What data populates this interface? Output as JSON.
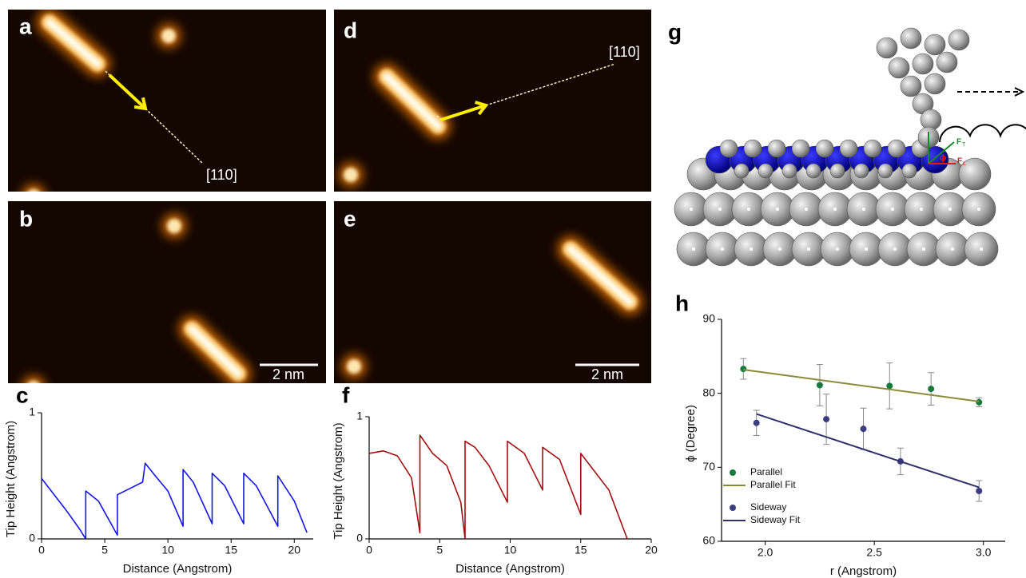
{
  "figure": {
    "panel_labels": [
      "a",
      "b",
      "c",
      "d",
      "e",
      "f",
      "g",
      "h"
    ],
    "direction_labels": [
      "[110]",
      "[110]"
    ],
    "scale_bars": [
      "2 nm",
      "2 nm"
    ],
    "force_labels": [
      "F",
      "T",
      "F",
      "L",
      "ϕ"
    ]
  },
  "chart_data": [
    {
      "type": "line",
      "xlabel": "Distance (Angstrom)",
      "ylabel": "Tip Height (Angstrom)",
      "color": "#1414e6",
      "x": [
        0,
        1,
        2,
        3,
        3.5,
        3.5,
        4.5,
        5.5,
        6,
        6,
        7,
        8,
        8.2,
        9,
        10,
        11.2,
        11.2,
        12,
        13.5,
        13.5,
        14.5,
        16,
        16,
        17,
        18.7,
        18.7,
        20,
        21
      ],
      "values": [
        0.48,
        0.35,
        0.22,
        0.08,
        0,
        0.38,
        0.3,
        0.12,
        0.03,
        0.35,
        0.4,
        0.45,
        0.6,
        0.5,
        0.38,
        0.1,
        0.55,
        0.45,
        0.12,
        0.52,
        0.42,
        0.12,
        0.52,
        0.42,
        0.1,
        0.5,
        0.3,
        0.05
      ],
      "xlim": [
        0,
        21.5
      ],
      "xticks": [
        0,
        5,
        10,
        15,
        20
      ],
      "ylim": [
        0,
        1
      ],
      "yticks": [
        0,
        1
      ]
    },
    {
      "type": "line",
      "xlabel": "Distance (Angstrom)",
      "ylabel": "Tip Height (Angstrom)",
      "color": "#a01010",
      "x": [
        0,
        1,
        2,
        3,
        3.6,
        3.6,
        4.5,
        5.5,
        6.5,
        6.8,
        6.8,
        7.5,
        8.5,
        9.8,
        9.8,
        11,
        12.3,
        12.3,
        13.5,
        15,
        15,
        16,
        17,
        18.3
      ],
      "values": [
        0.7,
        0.72,
        0.68,
        0.5,
        0.05,
        0.85,
        0.7,
        0.6,
        0.3,
        0,
        0.8,
        0.75,
        0.6,
        0.3,
        0.8,
        0.7,
        0.4,
        0.75,
        0.65,
        0.2,
        0.7,
        0.55,
        0.4,
        0
      ],
      "xlim": [
        0,
        20
      ],
      "xticks": [
        0,
        5,
        10,
        15,
        20
      ],
      "ylim": [
        0,
        1
      ],
      "yticks": [
        0,
        1
      ]
    },
    {
      "type": "scatter",
      "xlabel": "r (Angstrom)",
      "ylabel": "ϕ (Degree)",
      "legend": "lower left",
      "xlim": [
        1.8,
        3.1
      ],
      "xticks": [
        {
          "value": 2,
          "label": "2.0"
        },
        {
          "value": 2.5,
          "label": "2.5"
        },
        {
          "value": 3,
          "label": "3.0"
        }
      ],
      "ylim": [
        60,
        90
      ],
      "yticks": [
        60,
        70,
        80,
        90
      ],
      "series": [
        {
          "name": "Parallel",
          "color": "#157a3c",
          "x": [
            1.9,
            2.25,
            2.57,
            2.76,
            2.98
          ],
          "values": [
            83.3,
            81.1,
            81,
            80.6,
            78.8
          ],
          "errors": [
            1.4,
            2.8,
            3.1,
            2.2,
            0.6
          ]
        },
        {
          "name": "Parallel Fit",
          "color": "#8a8a3a",
          "x": [
            1.9,
            2.98
          ],
          "values": [
            83.2,
            78.9
          ]
        },
        {
          "name": "Sideway",
          "color": "#3c3c80",
          "x": [
            1.96,
            2.28,
            2.45,
            2.62,
            2.98
          ],
          "values": [
            76,
            76.5,
            75.2,
            70.8,
            66.8
          ],
          "errors": [
            1.7,
            3.4,
            2.8,
            1.8,
            1.4
          ]
        },
        {
          "name": "Sideway Fit",
          "color": "#30306a",
          "x": [
            1.96,
            2.98
          ],
          "values": [
            77.2,
            67.3
          ]
        }
      ]
    }
  ]
}
